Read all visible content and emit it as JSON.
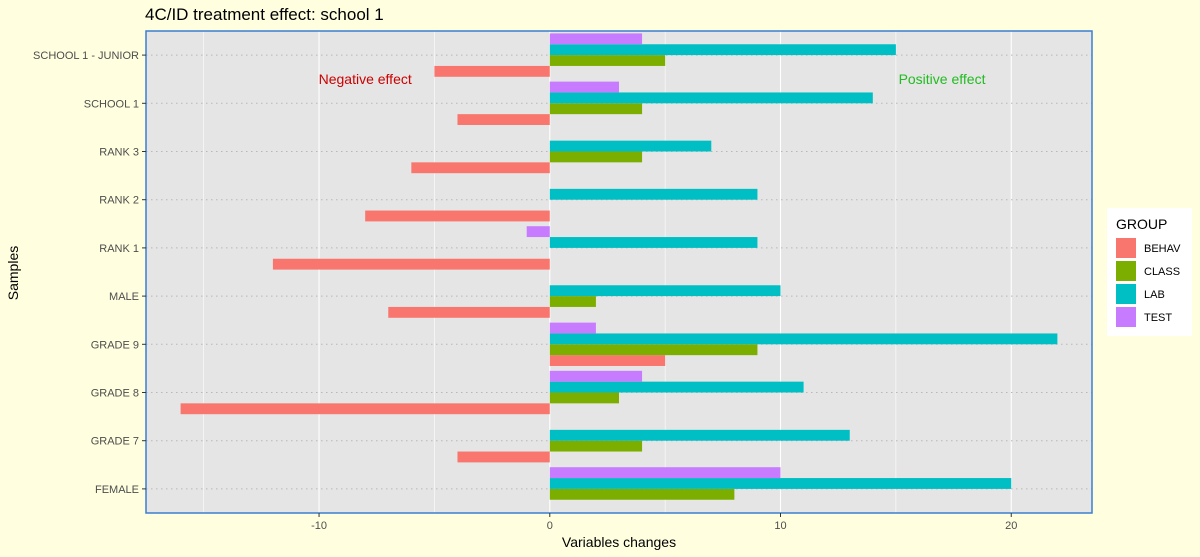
{
  "chart_data": {
    "type": "bar",
    "orientation": "horizontal",
    "title": "4C/ID treatment effect: school 1",
    "xlabel": "Variables changes",
    "ylabel": "Samples",
    "xlim": [
      -17.5,
      23.5
    ],
    "xticks": [
      -10,
      0,
      10,
      20
    ],
    "x_grid_values": [
      -15,
      -10,
      -5,
      0,
      5,
      10,
      15,
      20
    ],
    "grid": true,
    "categories": [
      "FEMALE",
      "GRADE 7",
      "GRADE 8",
      "GRADE 9",
      "MALE",
      "RANK 1",
      "RANK 2",
      "RANK 3",
      "SCHOOL 1",
      "SCHOOL 1 - JUNIOR"
    ],
    "legend": {
      "title": "GROUP",
      "position": "right"
    },
    "series": [
      {
        "name": "BEHAV",
        "color": "#f8766d",
        "values": [
          null,
          -4,
          -16,
          5,
          -7,
          -12,
          -8,
          -6,
          -4,
          -5
        ]
      },
      {
        "name": "CLASS",
        "color": "#7cae00",
        "values": [
          8,
          4,
          3,
          9,
          2,
          null,
          null,
          4,
          4,
          5
        ]
      },
      {
        "name": "LAB",
        "color": "#00bfc4",
        "values": [
          20,
          13,
          11,
          22,
          10,
          9,
          9,
          7,
          14,
          15
        ]
      },
      {
        "name": "TEST",
        "color": "#c77cff",
        "values": [
          10,
          null,
          4,
          2,
          null,
          -1,
          null,
          null,
          3,
          4
        ]
      }
    ],
    "annotations": [
      {
        "text": "Negative effect",
        "x": -8,
        "y": "SCHOOL 1 - JUNIOR",
        "color": "#cc0000"
      },
      {
        "text": "Positive effect",
        "x": 17,
        "y": "SCHOOL 1 - JUNIOR",
        "color": "#22bb22"
      }
    ]
  }
}
